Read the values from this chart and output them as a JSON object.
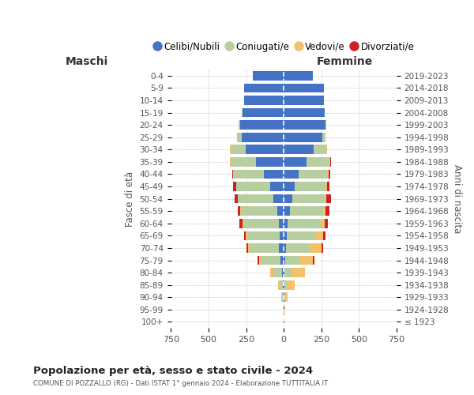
{
  "age_groups": [
    "100+",
    "95-99",
    "90-94",
    "85-89",
    "80-84",
    "75-79",
    "70-74",
    "65-69",
    "60-64",
    "55-59",
    "50-54",
    "45-49",
    "40-44",
    "35-39",
    "30-34",
    "25-29",
    "20-24",
    "15-19",
    "10-14",
    "5-9",
    "0-4"
  ],
  "birth_years": [
    "≤ 1923",
    "1924-1928",
    "1929-1933",
    "1934-1938",
    "1939-1943",
    "1944-1948",
    "1949-1953",
    "1954-1958",
    "1959-1963",
    "1964-1968",
    "1969-1973",
    "1974-1978",
    "1979-1983",
    "1984-1988",
    "1989-1993",
    "1994-1998",
    "1999-2003",
    "2004-2008",
    "2009-2013",
    "2014-2018",
    "2019-2023"
  ],
  "male": {
    "celibi": [
      2,
      2,
      3,
      5,
      10,
      20,
      30,
      25,
      30,
      45,
      70,
      90,
      130,
      185,
      255,
      280,
      290,
      275,
      265,
      265,
      205
    ],
    "coniugati": [
      1,
      3,
      8,
      20,
      60,
      130,
      195,
      220,
      240,
      240,
      235,
      225,
      205,
      170,
      100,
      30,
      8,
      3,
      0,
      0,
      0
    ],
    "vedovi": [
      0,
      1,
      4,
      15,
      20,
      15,
      12,
      8,
      5,
      3,
      2,
      2,
      1,
      1,
      1,
      1,
      0,
      0,
      0,
      0,
      0
    ],
    "divorziati": [
      0,
      0,
      0,
      0,
      0,
      8,
      10,
      12,
      18,
      18,
      20,
      18,
      8,
      5,
      3,
      1,
      0,
      0,
      0,
      0,
      0
    ]
  },
  "female": {
    "nubili": [
      2,
      2,
      2,
      4,
      5,
      10,
      15,
      20,
      25,
      40,
      55,
      75,
      100,
      150,
      200,
      255,
      280,
      270,
      265,
      265,
      195
    ],
    "coniugate": [
      0,
      2,
      5,
      15,
      45,
      95,
      160,
      195,
      220,
      220,
      220,
      210,
      195,
      155,
      85,
      25,
      5,
      2,
      0,
      0,
      0
    ],
    "vedove": [
      1,
      5,
      20,
      55,
      90,
      90,
      75,
      45,
      25,
      18,
      10,
      5,
      3,
      2,
      1,
      0,
      0,
      0,
      0,
      0,
      0
    ],
    "divorziate": [
      0,
      0,
      0,
      0,
      0,
      8,
      12,
      18,
      22,
      28,
      28,
      15,
      10,
      8,
      2,
      0,
      0,
      0,
      0,
      0,
      0
    ]
  },
  "colors": {
    "celibi": "#4472c4",
    "coniugati": "#b7cfa0",
    "vedovi": "#f5c06a",
    "divorziati": "#cc2222"
  },
  "title": "Popolazione per età, sesso e stato civile - 2024",
  "subtitle": "COMUNE DI POZZALLO (RG) - Dati ISTAT 1° gennaio 2024 - Elaborazione TUTTITALIA.IT",
  "xlabel_left": "Maschi",
  "xlabel_right": "Femmine",
  "ylabel_left": "Fasce di età",
  "ylabel_right": "Anni di nascita",
  "xlim": 750,
  "legend_labels": [
    "Celibi/Nubili",
    "Coniugati/e",
    "Vedovi/e",
    "Divorziati/e"
  ],
  "bg_color": "#ffffff",
  "grid_color": "#cccccc"
}
